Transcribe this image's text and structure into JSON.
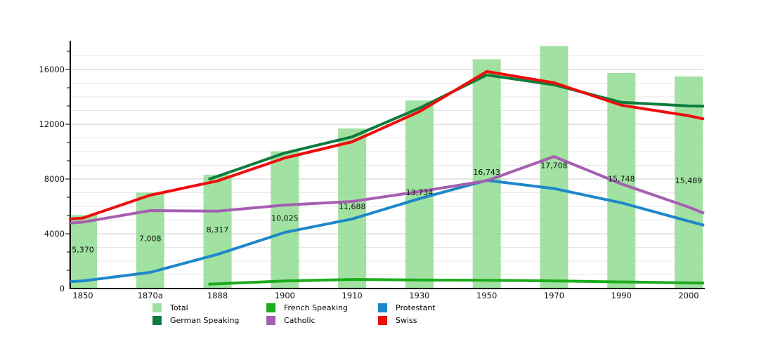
{
  "chart_data": {
    "type": "bar+line",
    "title": "",
    "categories": [
      "1850",
      "1870a",
      "1888",
      "1900",
      "1910",
      "1930",
      "1950",
      "1970",
      "1990",
      "2000"
    ],
    "y_axis": {
      "tick_labels": [
        "0",
        "4000",
        "8000",
        "12000",
        "16000"
      ],
      "tick_values": [
        0,
        4000,
        8000,
        12000,
        16000
      ],
      "minor_step": 1000,
      "plot_max": 18000,
      "grid": "on"
    },
    "bars": {
      "name": "Total",
      "color": "#90DC90",
      "values": [
        5370,
        7008,
        8317,
        10025,
        11688,
        13734,
        16743,
        17708,
        15748,
        15489
      ],
      "labels": [
        "5,370",
        "7,008",
        "8,317",
        "10,025",
        "11,688",
        "13,734",
        "16,743",
        "17,708",
        "15,748",
        "15,489"
      ]
    },
    "series": [
      {
        "name": "German Speaking",
        "color": "#0E7C3E",
        "values": [
          null,
          null,
          8200,
          9900,
          11080,
          13180,
          15600,
          14880,
          13600,
          13340
        ],
        "left_edge": null,
        "right_edge": 13320
      },
      {
        "name": "French Speaking",
        "color": "#1CAC1C",
        "values": [
          null,
          null,
          350,
          550,
          660,
          620,
          600,
          560,
          480,
          410
        ],
        "left_edge": null,
        "right_edge": 400
      },
      {
        "name": "Protestant",
        "color": "#1D87C9",
        "values": [
          560,
          1180,
          2500,
          4100,
          5080,
          6570,
          7900,
          7300,
          6260,
          4920
        ],
        "left_edge": 510,
        "right_edge": 4620
      },
      {
        "name": "Catholic",
        "color": "#A55FB0",
        "values": [
          4850,
          5690,
          5650,
          6100,
          6360,
          7080,
          7870,
          9640,
          7640,
          5950
        ],
        "left_edge": 4780,
        "right_edge": 5500
      },
      {
        "name": "Swiss",
        "color": "#EE0D0D",
        "values": [
          5150,
          6820,
          7860,
          9540,
          10720,
          12930,
          15850,
          15030,
          13390,
          12620
        ],
        "left_edge": 5080,
        "right_edge": 12380
      }
    ],
    "legend": {
      "position": "bottom",
      "items": [
        {
          "label": "Total",
          "color": "#9DE09D",
          "column": 0,
          "row": 0
        },
        {
          "label": "German Speaking",
          "color": "#0E7C3E",
          "column": 0,
          "row": 1
        },
        {
          "label": "French Speaking",
          "color": "#1CAC1C",
          "column": 1,
          "row": 0
        },
        {
          "label": "Catholic",
          "color": "#A55FB0",
          "column": 1,
          "row": 1
        },
        {
          "label": "Protestant",
          "color": "#1D87C9",
          "column": 2,
          "row": 0
        },
        {
          "label": "Swiss",
          "color": "#EE0D0D",
          "column": 2,
          "row": 1
        }
      ]
    },
    "grid": {
      "minor_color": "#e7e7e7",
      "major_color": "#cdcdcd"
    },
    "axis_color": "#000000",
    "text_color": "#111111"
  }
}
